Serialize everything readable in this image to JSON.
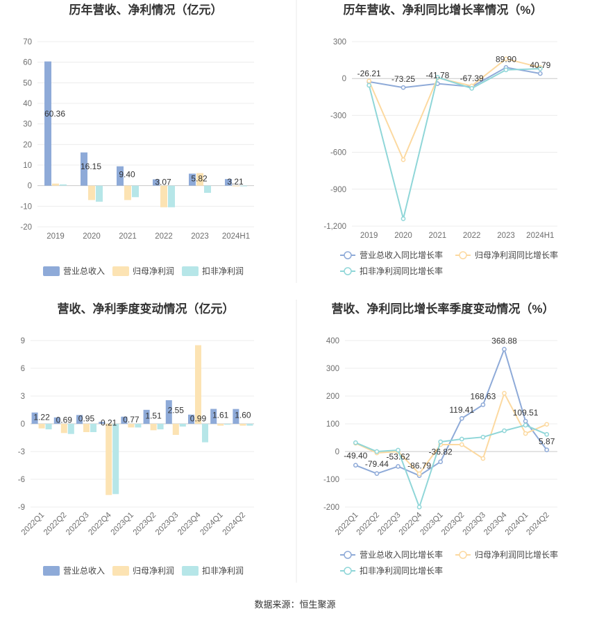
{
  "colors": {
    "revenue": "#8eaad8",
    "net_profit": "#fce3b3",
    "deducted_profit": "#b6e6e8"
  },
  "source": "数据来源：恒生聚源",
  "chart_data": [
    {
      "type": "bar",
      "title": "历年营收、净利情况（亿元）",
      "categories": [
        "2019",
        "2020",
        "2021",
        "2022",
        "2023",
        "2024H1"
      ],
      "ylim": [
        -20,
        70
      ],
      "yticks": [
        70,
        60,
        50,
        40,
        30,
        20,
        10,
        0,
        -10,
        -20
      ],
      "ytick_labels": [
        "70",
        "60",
        "50",
        "40",
        "30",
        "20",
        "10",
        "0",
        "-10",
        "-20"
      ],
      "series": [
        {
          "name": "营业总收入",
          "values": [
            60.36,
            16.15,
            9.4,
            3.07,
            5.82,
            3.21
          ],
          "labels": [
            "60.36",
            "16.15",
            "9.40",
            "3.07",
            "5.82",
            "3.21"
          ]
        },
        {
          "name": "归母净利润",
          "values": [
            1.0,
            -7.0,
            -7.0,
            -10.5,
            6.1,
            -0.2
          ]
        },
        {
          "name": "扣非净利润",
          "values": [
            0.6,
            -7.8,
            -5.6,
            -10.5,
            -3.5,
            -0.3
          ]
        }
      ]
    },
    {
      "type": "line",
      "title": "历年营收、净利同比增长率情况（%）",
      "categories": [
        "2019",
        "2020",
        "2021",
        "2022",
        "2023",
        "2024H1"
      ],
      "ylim": [
        -1200,
        300
      ],
      "yticks": [
        300,
        0,
        -300,
        -600,
        -900,
        -1200
      ],
      "ytick_labels": [
        "300",
        "0",
        "-300",
        "-600",
        "-900",
        "-1,200"
      ],
      "series": [
        {
          "name": "营业总收入同比增长率",
          "values": [
            -26.21,
            -73.25,
            -41.78,
            -67.39,
            89.9,
            40.79
          ],
          "labels": [
            "-26.21",
            "-73.25",
            "-41.78",
            "-67.39",
            "89.90",
            "40.79"
          ]
        },
        {
          "name": "归母净利润同比增长率",
          "values": [
            -20,
            -660,
            5,
            -60,
            160,
            90
          ]
        },
        {
          "name": "扣非净利润同比增长率",
          "values": [
            -55,
            -1140,
            10,
            -80,
            70,
            80
          ]
        }
      ]
    },
    {
      "type": "bar",
      "title": "营收、净利季度变动情况（亿元）",
      "categories": [
        "2022Q1",
        "2022Q2",
        "2022Q3",
        "2022Q4",
        "2023Q1",
        "2023Q2",
        "2023Q3",
        "2023Q4",
        "2024Q1",
        "2024Q2"
      ],
      "ylim": [
        -9,
        9
      ],
      "yticks": [
        9,
        6,
        3,
        0,
        -3,
        -6,
        -9
      ],
      "ytick_labels": [
        "9",
        "6",
        "3",
        "0",
        "-3",
        "-6",
        "-9"
      ],
      "series": [
        {
          "name": "营业总收入",
          "values": [
            1.22,
            0.69,
            0.95,
            0.21,
            0.77,
            1.51,
            2.55,
            0.99,
            1.61,
            1.6
          ],
          "labels": [
            "1.22",
            "0.69",
            "0.95",
            "0.21",
            "0.77",
            "1.51",
            "2.55",
            "0.99",
            "1.61",
            "1.60"
          ]
        },
        {
          "name": "归母净利润",
          "values": [
            -0.5,
            -1.0,
            -0.9,
            -7.7,
            -0.4,
            -0.7,
            -1.2,
            8.5,
            -0.2,
            -0.2
          ]
        },
        {
          "name": "扣非净利润",
          "values": [
            -0.6,
            -1.1,
            -0.9,
            -7.6,
            -0.4,
            -0.6,
            -0.3,
            -2.0,
            -0.1,
            -0.2
          ]
        }
      ]
    },
    {
      "type": "line",
      "title": "营收、净利同比增长率季度变动情况（%）",
      "categories": [
        "2022Q1",
        "2022Q2",
        "2022Q3",
        "2022Q4",
        "2023Q1",
        "2023Q2",
        "2023Q3",
        "2023Q4",
        "2024Q1",
        "2024Q2"
      ],
      "ylim": [
        -200,
        400
      ],
      "yticks": [
        400,
        300,
        200,
        100,
        0,
        -100,
        -200
      ],
      "ytick_labels": [
        "400",
        "300",
        "200",
        "100",
        "0",
        "-100",
        "-200"
      ],
      "series": [
        {
          "name": "营业总收入同比增长率",
          "values": [
            -49.4,
            -79.44,
            -53.62,
            -86.79,
            -36.82,
            119.41,
            168.63,
            368.88,
            109.51,
            5.87
          ],
          "labels": [
            "-49.40",
            "-79.44",
            "-53.62",
            "-86.79",
            "-36.82",
            "119.41",
            "168.63",
            "368.88",
            "109.51",
            "5.87"
          ]
        },
        {
          "name": "归母净利润同比增长率",
          "values": [
            30,
            -5,
            0,
            -80,
            25,
            25,
            -25,
            210,
            65,
            98
          ]
        },
        {
          "name": "扣非净利润同比增长率",
          "values": [
            32,
            0,
            5,
            -200,
            35,
            45,
            52,
            75,
            95,
            62
          ]
        }
      ]
    }
  ]
}
